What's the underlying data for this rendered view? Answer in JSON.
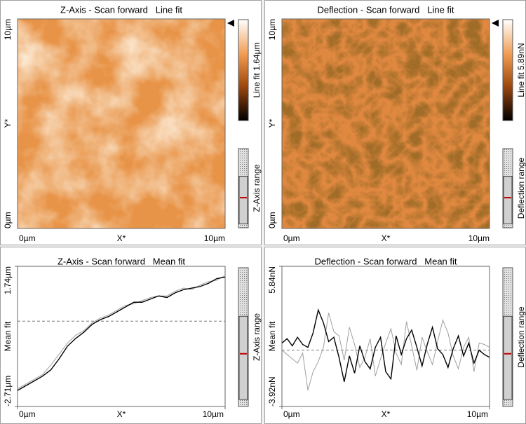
{
  "panels": [
    {
      "title": "Z-Axis - Scan forward   Line fit",
      "y_labels": [
        "10µm",
        "Y*",
        "0µm"
      ],
      "x_labels": [
        "0µm",
        "X*",
        "10µm"
      ],
      "colorbar_label": "Line fit 1.64µm",
      "range_label": "Z-Axis range"
    },
    {
      "title": "Deflection - Scan forward   Line fit",
      "y_labels": [
        "10µm",
        "Y*",
        "0µm"
      ],
      "x_labels": [
        "0µm",
        "X*",
        "10µm"
      ],
      "colorbar_label": "Line fit 5.89nN",
      "range_label": "Deflection range"
    },
    {
      "title": "Z-Axis - Scan forward   Mean fit",
      "y_label": "Mean fit",
      "x_label": "X*",
      "range_label": "Z-Axis range",
      "xlim": [
        0,
        10
      ],
      "xticks": [
        {
          "value": 0,
          "label": "0µm"
        },
        {
          "value": 10,
          "label": "10µm"
        }
      ],
      "ylim": [
        -2.71,
        1.74
      ],
      "yticks": [
        {
          "value": -2.71,
          "label": "-2.71µm"
        },
        {
          "value": 1.74,
          "label": "1.74µm"
        }
      ],
      "mean_line": 0,
      "x": [
        0,
        0.4,
        0.8,
        1.2,
        1.6,
        2,
        2.4,
        2.8,
        3.2,
        3.6,
        4,
        4.4,
        4.8,
        5.2,
        5.6,
        6,
        6.4,
        6.8,
        7.2,
        7.6,
        8,
        8.4,
        8.8,
        9.2,
        9.6,
        10
      ],
      "series": [
        {
          "color": "#a0a0a0",
          "values": [
            -2.15,
            -2.0,
            -1.85,
            -1.7,
            -1.4,
            -1.05,
            -0.7,
            -0.45,
            -0.3,
            -0.05,
            0.1,
            0.2,
            0.35,
            0.5,
            0.55,
            0.65,
            0.75,
            0.8,
            0.8,
            0.95,
            1.05,
            1.0,
            1.15,
            1.25,
            1.3,
            1.45
          ]
        },
        {
          "color": "#000000",
          "values": [
            -2.2,
            -2.05,
            -1.9,
            -1.75,
            -1.55,
            -1.2,
            -0.8,
            -0.55,
            -0.35,
            -0.1,
            0.05,
            0.15,
            0.3,
            0.45,
            0.6,
            0.6,
            0.7,
            0.8,
            0.75,
            0.9,
            1.0,
            1.05,
            1.1,
            1.2,
            1.35,
            1.4
          ]
        }
      ]
    },
    {
      "title": "Deflection - Scan forward   Mean fit",
      "y_label": "Mean fit",
      "x_label": "X*",
      "range_label": "Deflection range",
      "xlim": [
        0,
        10
      ],
      "xticks": [
        {
          "value": 0,
          "label": "0µm"
        },
        {
          "value": 10,
          "label": "10µm"
        }
      ],
      "ylim": [
        -3.92,
        5.84
      ],
      "yticks": [
        {
          "value": -3.92,
          "label": "-3.92nN"
        },
        {
          "value": 5.84,
          "label": "5.84nN"
        }
      ],
      "mean_line": 0,
      "x": [
        0,
        0.25,
        0.5,
        0.75,
        1,
        1.25,
        1.5,
        1.75,
        2,
        2.25,
        2.5,
        2.75,
        3,
        3.25,
        3.5,
        3.75,
        4,
        4.25,
        4.5,
        4.75,
        5,
        5.25,
        5.5,
        5.75,
        6,
        6.25,
        6.5,
        6.75,
        7,
        7.25,
        7.5,
        7.75,
        8,
        8.25,
        8.5,
        8.75,
        9,
        9.25,
        9.5,
        9.75,
        10
      ],
      "series": [
        {
          "color": "#a0a0a0",
          "values": [
            0.0,
            -0.3,
            -0.6,
            -0.9,
            -0.2,
            -2.8,
            -1.5,
            -0.8,
            0.2,
            2.6,
            1.3,
            1.0,
            -0.7,
            1.6,
            0.4,
            -1.2,
            -0.5,
            0.8,
            -1.8,
            -0.6,
            0.5,
            1.5,
            -0.2,
            -1.0,
            2.0,
            0.3,
            -1.4,
            0.9,
            -0.1,
            -1.0,
            0.6,
            2.1,
            1.2,
            -0.4,
            -1.3,
            0.2,
            0.9,
            -1.5,
            0.5,
            0.4,
            0.2
          ]
        },
        {
          "color": "#000000",
          "values": [
            0.5,
            0.8,
            0.3,
            0.9,
            0.4,
            0.2,
            1.2,
            2.8,
            1.9,
            0.6,
            0.9,
            -0.5,
            -2.2,
            -0.4,
            -1.6,
            0.3,
            -0.8,
            -1.3,
            0.2,
            0.9,
            -1.5,
            -2.0,
            1.0,
            -0.3,
            0.8,
            1.4,
            0.2,
            -1.1,
            0.4,
            1.6,
            0.1,
            -0.3,
            -1.2,
            0.1,
            1.0,
            -0.4,
            0.5,
            -0.9,
            0.0,
            -0.3,
            -0.5
          ]
        }
      ]
    }
  ]
}
